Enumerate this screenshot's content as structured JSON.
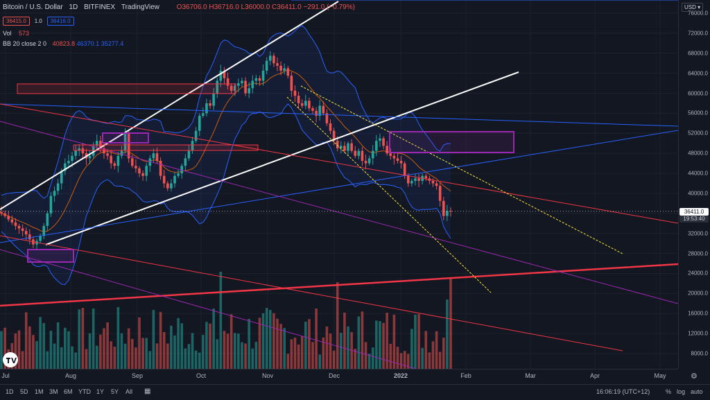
{
  "header": {
    "symbol": "Bitcoin / U.S. Dollar",
    "interval": "1D",
    "exchange": "BITFINEX",
    "provider": "TradingView",
    "ohlc": {
      "o": "O36706.0",
      "h": "H36716.0",
      "l": "L36000.0",
      "c": "C36411.0",
      "chg": "−291.0 (−0.79%)"
    },
    "sell_price": "36415.0",
    "qty": "1.0",
    "buy_price": "36416.0",
    "vol_label": "Vol",
    "vol_value": "573",
    "bb_label": "BB 20 close 2 0",
    "bb_mid": "40823.8",
    "bb_upper": "46370.1",
    "bb_lower": "35277.4"
  },
  "currency": "USD",
  "last_price": "36411.0",
  "countdown": "19:53:40",
  "time": "16:06:19 (UTC+12)",
  "ranges": [
    "1D",
    "5D",
    "1M",
    "3M",
    "6M",
    "YTD",
    "1Y",
    "5Y",
    "All"
  ],
  "bottom_right": {
    "pct": "%",
    "log": "log",
    "auto": "auto"
  },
  "colors": {
    "up": "#26a69a",
    "down": "#ef5350",
    "bb": "#2962ff",
    "white": "#ffffff",
    "red": "#f23645",
    "purple": "#9c27b0",
    "yellow": "#ffeb3b",
    "bg": "#131722"
  },
  "chart_data": {
    "type": "line",
    "y_ticks": [
      "76000.0",
      "72000.0",
      "68000.0",
      "64000.0",
      "60000.0",
      "56000.0",
      "52000.0",
      "48000.0",
      "44000.0",
      "40000.0",
      "36000.0",
      "32000.0",
      "28000.0",
      "24000.0",
      "20000.0",
      "16000.0",
      "12000.0",
      "8000.0"
    ],
    "y_values": [
      76000,
      72000,
      68000,
      64000,
      60000,
      56000,
      52000,
      48000,
      44000,
      40000,
      36000,
      32000,
      28000,
      24000,
      20000,
      16000,
      12000,
      8000
    ],
    "x_ticks": [
      "Jul",
      "Aug",
      "Sep",
      "Oct",
      "Nov",
      "Dec",
      "2022",
      "Feb",
      "Mar",
      "Apr",
      "May"
    ],
    "ylim": [
      6000,
      77000
    ],
    "price_series": [
      [
        36000,
        35500,
        34800,
        34200,
        33500,
        33000,
        32500,
        31800,
        30800,
        29800,
        30500,
        31500,
        33500,
        36000,
        39500,
        40500,
        42000,
        44500,
        46000,
        46500,
        47500,
        48500,
        49000,
        48000,
        47000,
        47500,
        49500,
        50500,
        49000,
        48000,
        47500,
        46000,
        45500,
        47500,
        48500,
        52000,
        47000,
        45500,
        45000,
        44000,
        43500,
        45500,
        47000,
        48000,
        46500,
        43500,
        42000,
        41000,
        42000,
        43500,
        44000,
        45500,
        47000,
        48500,
        50500,
        52500,
        55500,
        56000,
        58000,
        57500,
        60000,
        62500,
        64500,
        63000,
        61500,
        60500,
        61500,
        62000,
        62500,
        60000,
        61000,
        62500,
        63000,
        62500,
        64500,
        66500,
        67500,
        66000,
        65500,
        64500,
        65000,
        63500,
        60500,
        59500,
        58000,
        57500,
        58500,
        57000,
        56500,
        55500,
        57500,
        56000,
        54000,
        52500,
        50500,
        49000,
        49500,
        48500,
        50000,
        48500,
        47500,
        48500,
        46500,
        46000,
        47000,
        48500,
        50500,
        51000,
        49500,
        48000,
        47500,
        47000,
        46500,
        46000,
        43500,
        42000,
        42500,
        43000,
        42500,
        43500,
        43000,
        42500,
        42000,
        41500,
        38500,
        35500,
        36500,
        36411
      ]
    ]
  }
}
